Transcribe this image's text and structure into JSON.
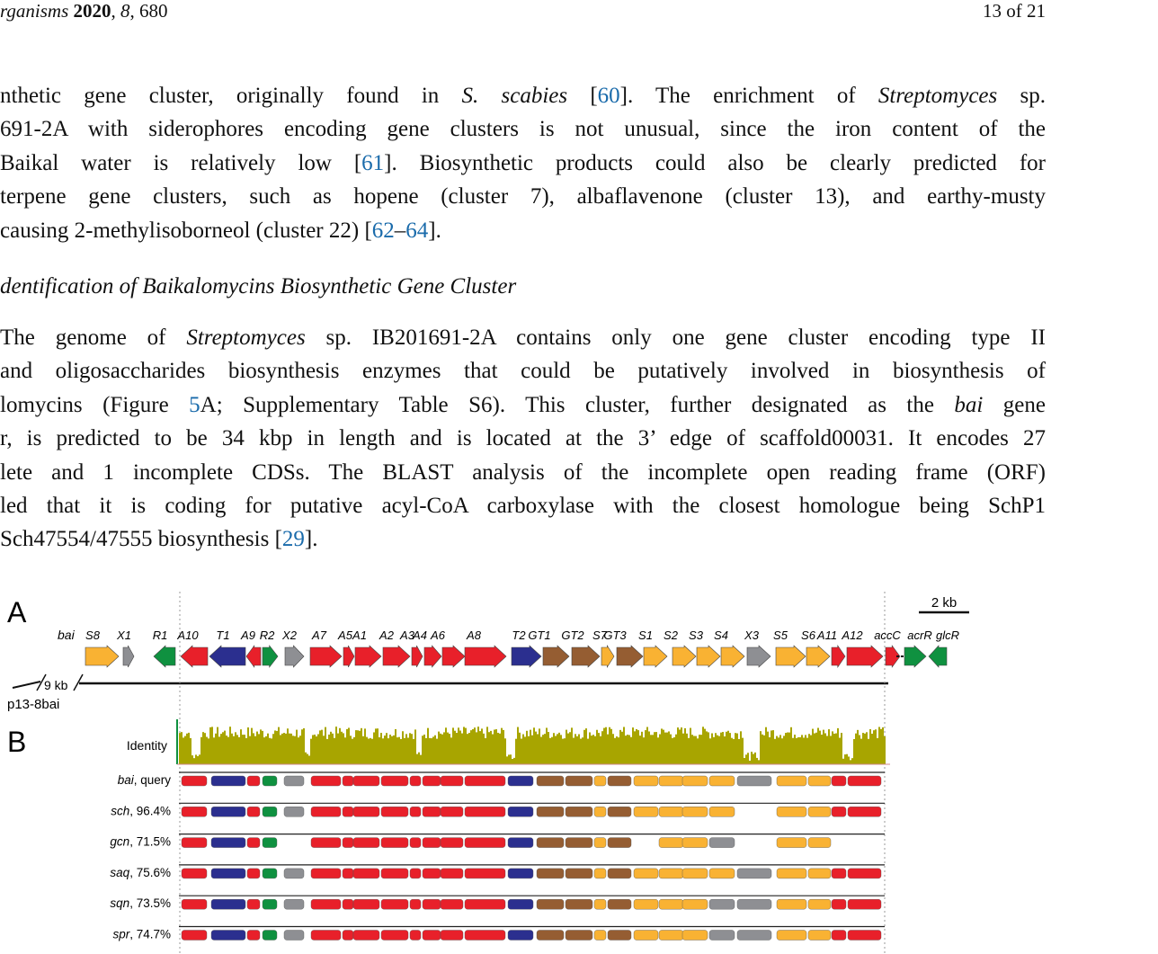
{
  "header": {
    "journal_left": "rganisms",
    "year": "2020",
    "volume": "8",
    "article": "680",
    "page": "13 of 21"
  },
  "paragraph1": [
    [
      "nthetic gene cluster, originally found in ",
      {
        "i": "S. scabies"
      },
      " [",
      {
        "r": "60"
      },
      "].  The enrichment of ",
      {
        "i": "Streptomyces"
      },
      " sp."
    ],
    [
      "691-2A with siderophores encoding gene clusters is not unusual, since the iron content of the"
    ],
    [
      " Baikal water is relatively low [",
      {
        "r": "61"
      },
      "].  Biosynthetic products could also be clearly predicted for"
    ],
    [
      " terpene gene clusters, such as hopene (cluster 7), albaflavenone (cluster 13), and earthy-musty"
    ],
    [
      " causing 2-methylisoborneol (cluster 22) [",
      {
        "r": "62"
      },
      "–",
      {
        "r": "64"
      },
      "]."
    ]
  ],
  "section_title": "dentification of Baikalomycins Biosynthetic Gene Cluster",
  "paragraph2": [
    [
      "The genome of ",
      {
        "i": "Streptomyces"
      },
      " sp.  IB201691-2A contains only one gene cluster encoding type II"
    ],
    [
      "and oligosaccharides biosynthesis enzymes that could be putatively involved in biosynthesis of"
    ],
    [
      "lomycins (Figure ",
      {
        "r": "5"
      },
      "A; Supplementary Table S6). This cluster, further designated as the ",
      {
        "i": "bai"
      },
      " gene"
    ],
    [
      "r, is predicted to be 34 kbp in length and is located at the 3’ edge of scaffold00031. It encodes 27"
    ],
    [
      "lete and 1 incomplete CDSs. The BLAST analysis of the incomplete open reading frame (ORF)"
    ],
    [
      "led that it is coding for putative acyl-CoA carboxylase with the closest homologue being SchP1"
    ],
    [
      "Sch47554/47555 biosynthesis [",
      {
        "r": "29"
      },
      "]."
    ]
  ],
  "figure": {
    "panel_a_label": "A",
    "panel_b_label": "B",
    "scale_bar": "2 kb",
    "cluster_name": "bai",
    "break_label": "9 kb",
    "plasmid_label": "p13-8bai",
    "identity_label": "Identity",
    "colors": {
      "red": "#e8202a",
      "blue": "#2b2f8f",
      "green": "#0f9140",
      "grey": "#8e8f93",
      "orange": "#f9b233",
      "brown": "#955d32",
      "olive": "#a8a500"
    },
    "genes": [
      {
        "name": "S8",
        "color": "orange",
        "dir": "r"
      },
      {
        "name": "X1",
        "color": "grey",
        "dir": "r"
      },
      {
        "name": "R1",
        "color": "green",
        "dir": "l"
      },
      {
        "name": "A10",
        "color": "red",
        "dir": "l"
      },
      {
        "name": "T1",
        "color": "blue",
        "dir": "l"
      },
      {
        "name": "A9",
        "color": "red",
        "dir": "l"
      },
      {
        "name": "R2",
        "color": "green",
        "dir": "r"
      },
      {
        "name": "X2",
        "color": "grey",
        "dir": "r"
      },
      {
        "name": "A7",
        "color": "red",
        "dir": "r"
      },
      {
        "name": "A5",
        "color": "red",
        "dir": "r"
      },
      {
        "name": "A1",
        "color": "red",
        "dir": "r"
      },
      {
        "name": "A2",
        "color": "red",
        "dir": "r"
      },
      {
        "name": "A3",
        "color": "red",
        "dir": "r"
      },
      {
        "name": "A4",
        "color": "red",
        "dir": "r"
      },
      {
        "name": "A6",
        "color": "red",
        "dir": "r"
      },
      {
        "name": "A8",
        "color": "red",
        "dir": "r"
      },
      {
        "name": "T2",
        "color": "blue",
        "dir": "r"
      },
      {
        "name": "GT1",
        "color": "brown",
        "dir": "r"
      },
      {
        "name": "GT2",
        "color": "brown",
        "dir": "r"
      },
      {
        "name": "S7",
        "color": "orange",
        "dir": "r"
      },
      {
        "name": "GT3",
        "color": "brown",
        "dir": "r"
      },
      {
        "name": "S1",
        "color": "orange",
        "dir": "r"
      },
      {
        "name": "S2",
        "color": "orange",
        "dir": "r"
      },
      {
        "name": "S3",
        "color": "orange",
        "dir": "r"
      },
      {
        "name": "S4",
        "color": "orange",
        "dir": "r"
      },
      {
        "name": "X3",
        "color": "grey",
        "dir": "r"
      },
      {
        "name": "S5",
        "color": "orange",
        "dir": "r"
      },
      {
        "name": "S6",
        "color": "orange",
        "dir": "r"
      },
      {
        "name": "A11",
        "color": "red",
        "dir": "r"
      },
      {
        "name": "A12",
        "color": "red",
        "dir": "r"
      },
      {
        "name": "accC",
        "color": "red",
        "dir": "r"
      },
      {
        "name": "acrR",
        "color": "green",
        "dir": "r"
      },
      {
        "name": "glcR",
        "color": "green",
        "dir": "l"
      }
    ],
    "alignments": [
      {
        "name": "bai",
        "identity": "query",
        "sep": ", "
      },
      {
        "name": "sch",
        "identity": "96.4%",
        "sep": ", "
      },
      {
        "name": "gcn",
        "identity": "71.5%",
        "sep": ", "
      },
      {
        "name": "saq",
        "identity": "75.6%",
        "sep": ", "
      },
      {
        "name": "sqn",
        "identity": "73.5%",
        "sep": ", "
      },
      {
        "name": "spr",
        "identity": "74.7%",
        "sep": ", "
      }
    ]
  }
}
